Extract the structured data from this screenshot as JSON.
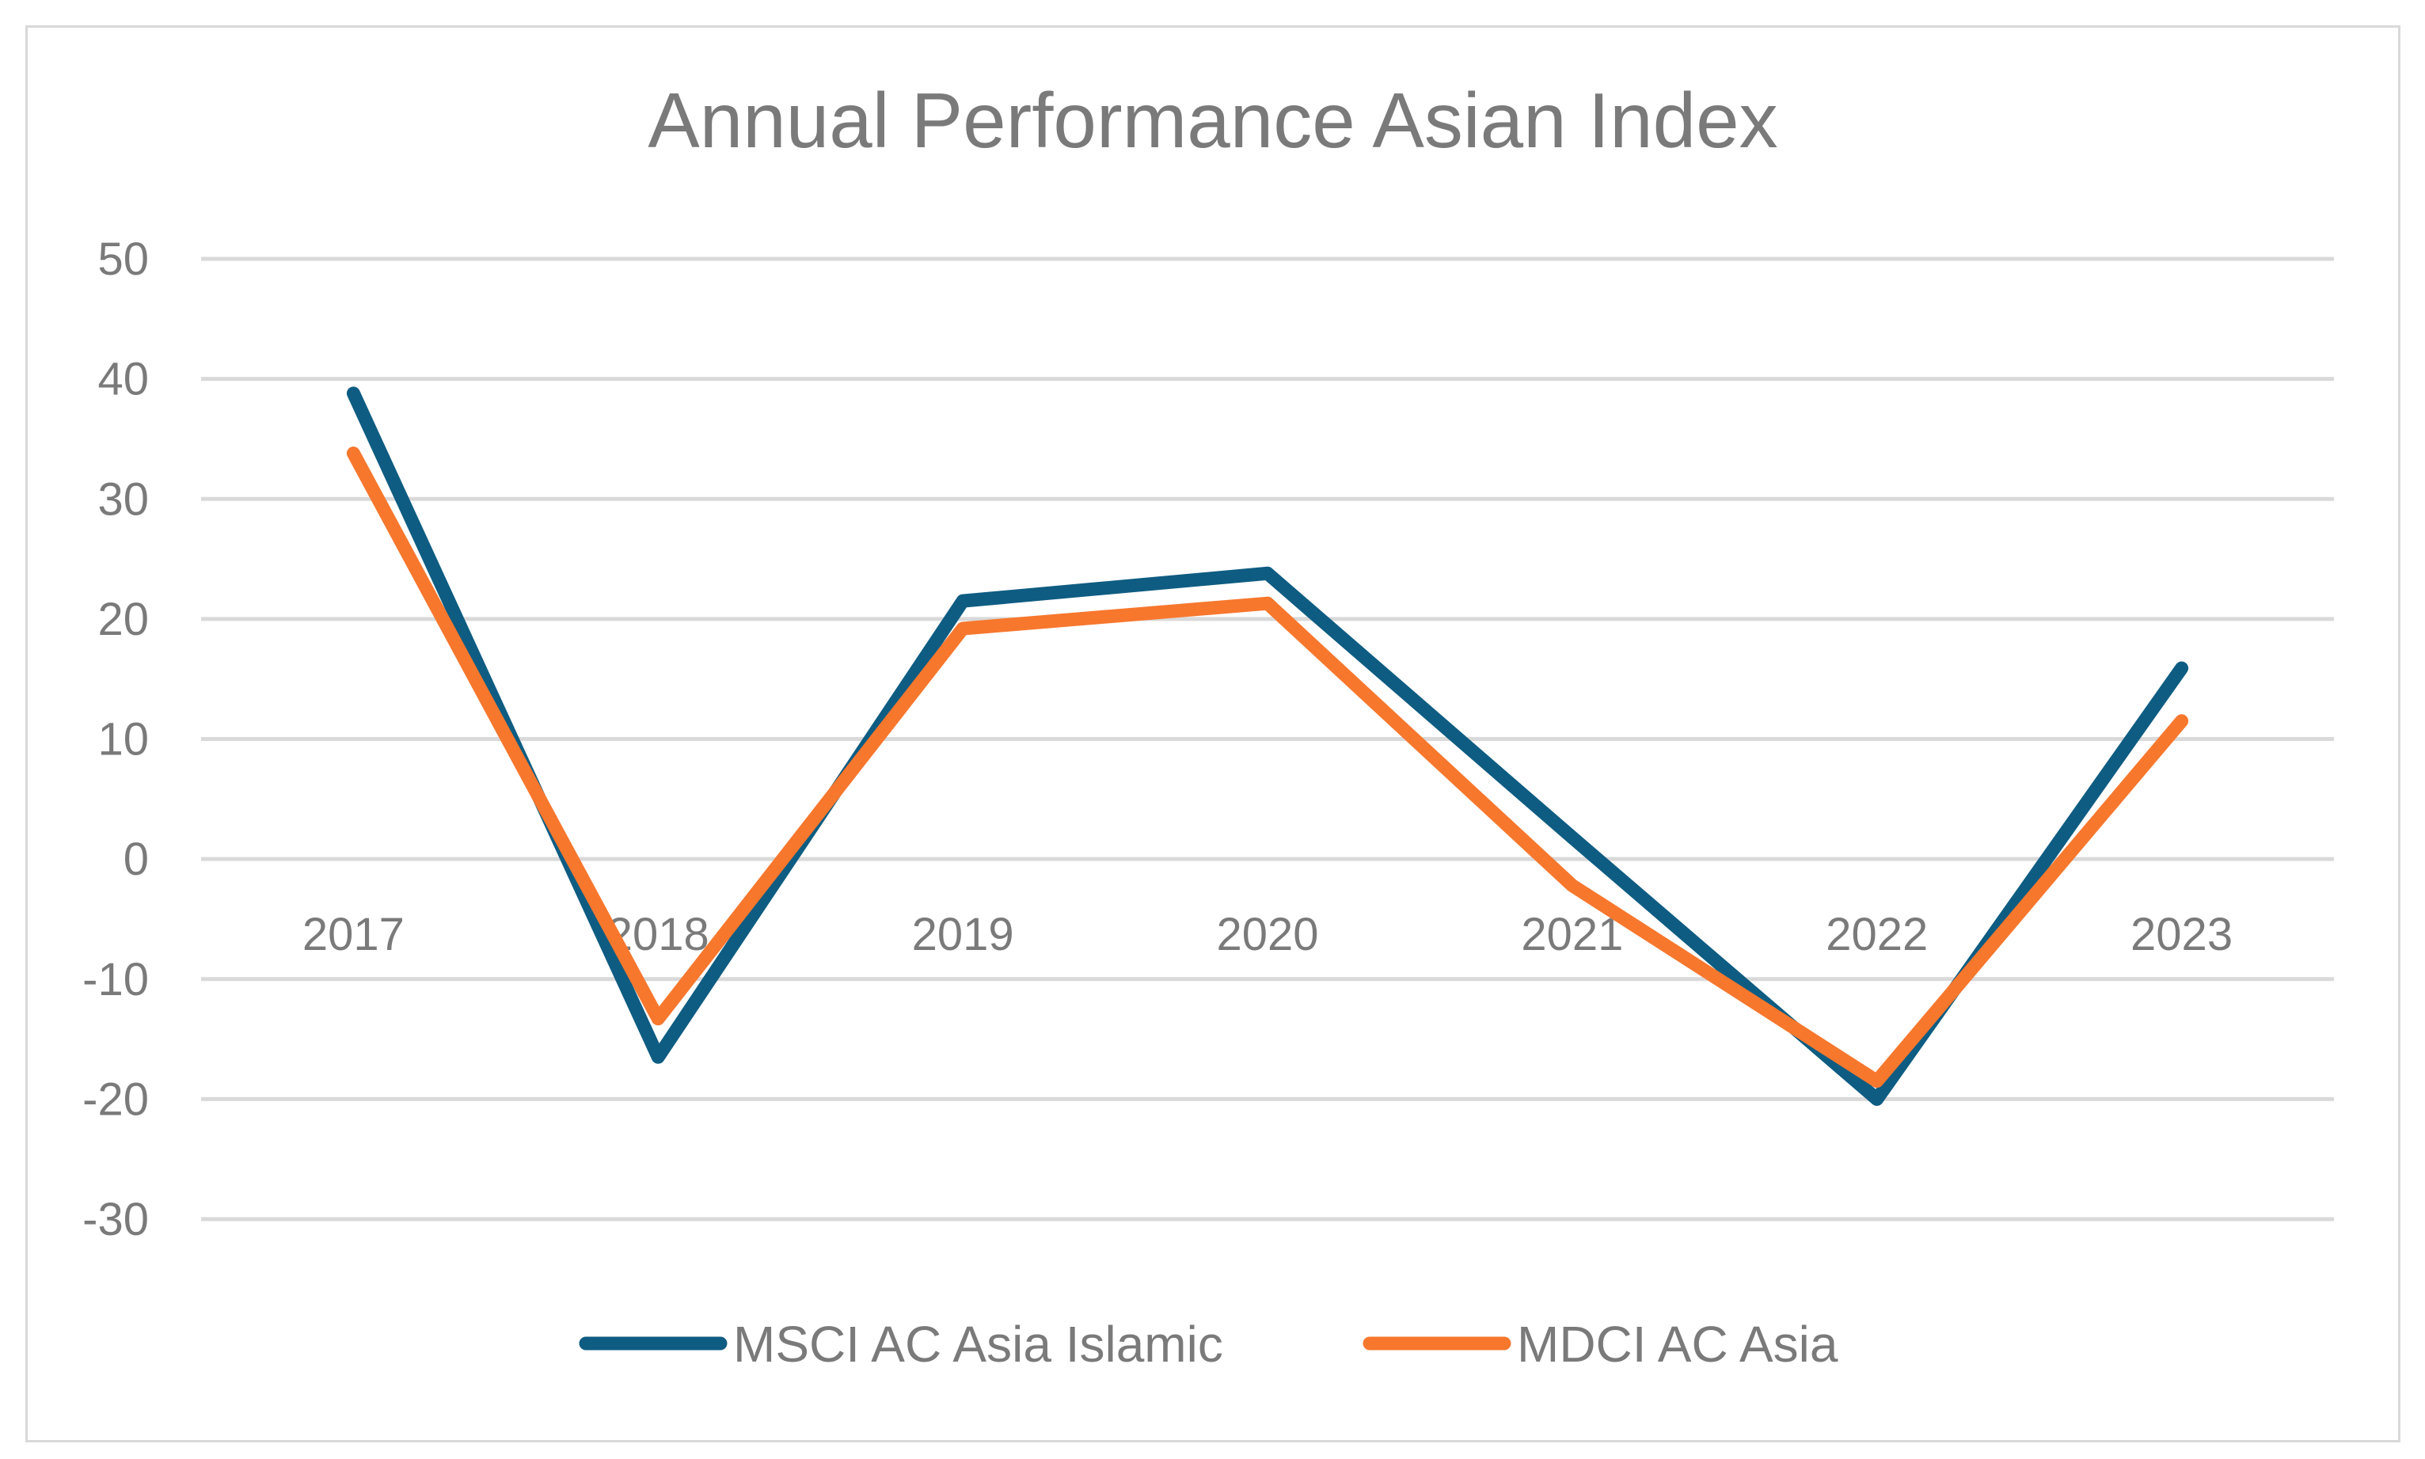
{
  "chart_data": {
    "type": "line",
    "title": "Annual Performance Asian Index",
    "categories": [
      "2017",
      "2018",
      "2019",
      "2020",
      "2021",
      "2022",
      "2023"
    ],
    "series": [
      {
        "name": "MSCI AC Asia Islamic",
        "color": "#0e5c82",
        "values": [
          38.8,
          -16.5,
          21.5,
          23.8,
          1.8,
          -20.0,
          15.9
        ]
      },
      {
        "name": "MDCI AC Asia",
        "color": "#f7772d",
        "values": [
          33.8,
          -13.3,
          19.2,
          21.3,
          -2.2,
          -18.5,
          11.5
        ]
      }
    ],
    "ylim": [
      -30,
      50
    ],
    "yticks": [
      50,
      40,
      30,
      20,
      10,
      0,
      -10,
      -20,
      -30
    ],
    "ytick_labels": [
      "50",
      "40",
      "30",
      "20",
      "10",
      "0",
      "-10",
      "-20",
      "-30"
    ],
    "grid": true,
    "legend_position": "bottom",
    "xlabel": "",
    "ylabel": "",
    "colors": {
      "text": "#7a7a7a",
      "grid": "#d9d9d9",
      "border": "#d9d9d9"
    }
  }
}
